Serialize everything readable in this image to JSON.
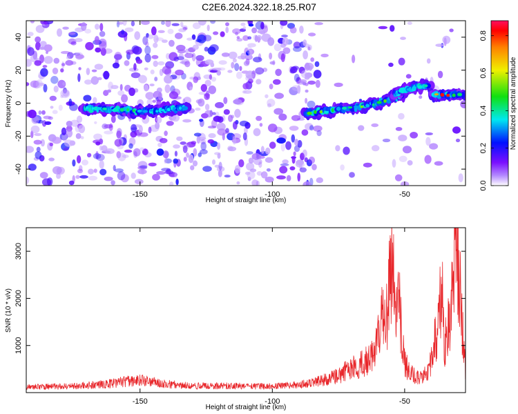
{
  "title": "C2E6.2024.322.18.25.R07",
  "colors": {
    "snr_line": "#e8262a",
    "ridge_peak": "#e8262a",
    "background": "#ffffff"
  },
  "chart_data": [
    {
      "type": "heatmap",
      "title": "C2E6.2024.322.18.25.R07",
      "xlabel": "Height of straight line (km)",
      "ylabel": "Frequency (Hz)",
      "xlim": [
        -193,
        -27
      ],
      "ylim": [
        -50,
        50
      ],
      "xticks": [
        -150,
        -100,
        -50
      ],
      "yticks": [
        -40,
        -20,
        0,
        20,
        40
      ],
      "colorbar": {
        "label": "Normalized spectral amplitude",
        "range": [
          0,
          0.88
        ],
        "ticks": [
          0.0,
          0.2,
          0.4,
          0.6,
          0.8
        ],
        "colormap": "rainbow (white-purple-blue-cyan-green-yellow-red)"
      },
      "ridges": [
        {
          "x": [
            -172,
            -160,
            -150,
            -140,
            -132
          ],
          "freq_hz": [
            -3,
            -4,
            -5,
            -4,
            -3
          ],
          "peak_amplitude": 0.45
        },
        {
          "x": [
            -88,
            -80,
            -70,
            -60,
            -55,
            -50
          ],
          "freq_hz": [
            -6,
            -5,
            -3,
            0,
            3,
            5
          ],
          "peak_amplitude": 0.55
        },
        {
          "x": [
            -55,
            -50,
            -45,
            -40
          ],
          "freq_hz": [
            5,
            8,
            10,
            11
          ],
          "peak_amplitude": 0.4
        },
        {
          "x": [
            -40,
            -35,
            -30,
            -27
          ],
          "freq_hz": [
            5,
            5,
            5,
            5
          ],
          "peak_amplitude": 0.88
        }
      ],
      "background_noise": "scattered low-amplitude patches (0.0-0.15), dense for heights below -85 km, sparse above"
    },
    {
      "type": "line",
      "xlabel": "Height of straight line (km)",
      "ylabel": "SNR (10 * v/v)",
      "xlim": [
        -193,
        -27
      ],
      "ylim": [
        0,
        3500
      ],
      "xticks": [
        -150,
        -100,
        -50
      ],
      "yticks": [
        1000,
        2000,
        3000
      ],
      "series": [
        {
          "x": [
            -193,
            -180,
            -170,
            -160,
            -152,
            -145,
            -140,
            -130,
            -120,
            -110,
            -100,
            -90,
            -85,
            -80,
            -75,
            -70,
            -65,
            -62,
            -60,
            -58,
            -57,
            -56,
            -55,
            -54,
            -53,
            -52,
            -51,
            -50,
            -48,
            -46,
            -44,
            -42,
            -40,
            -38,
            -37,
            -36,
            -35,
            -34,
            -33,
            -32,
            -31,
            -30,
            -29,
            -28,
            -27
          ],
          "values": [
            130,
            150,
            170,
            220,
            300,
            250,
            200,
            160,
            160,
            150,
            150,
            180,
            230,
            300,
            400,
            600,
            700,
            850,
            1350,
            2000,
            1500,
            2600,
            3300,
            2500,
            1900,
            2100,
            1200,
            700,
            450,
            400,
            350,
            420,
            700,
            1400,
            2000,
            2700,
            1100,
            1500,
            1800,
            2200,
            3100,
            3500,
            2500,
            1500,
            450
          ]
        }
      ]
    }
  ]
}
